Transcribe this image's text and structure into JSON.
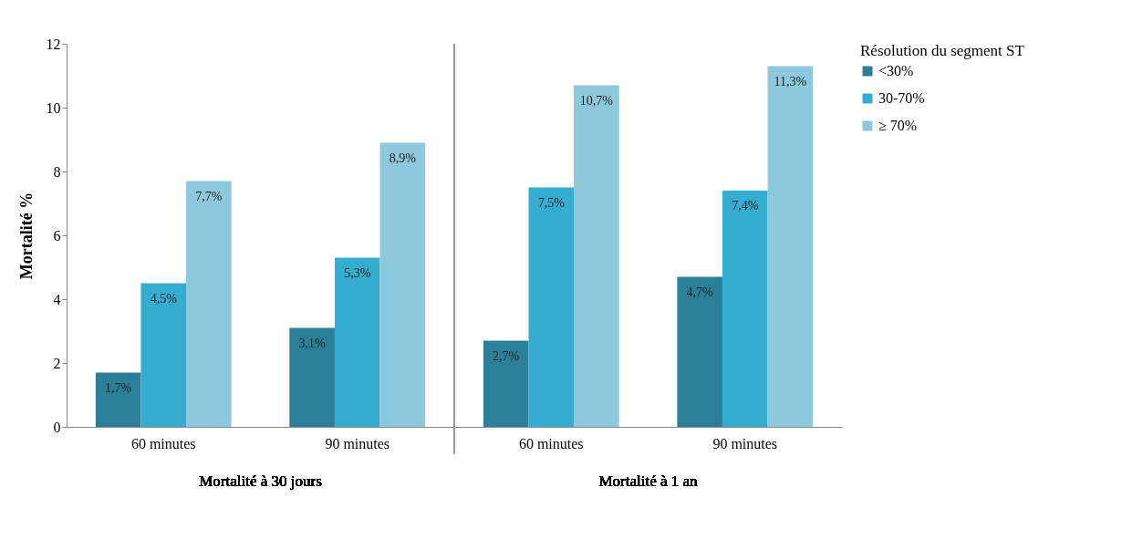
{
  "chart_data": {
    "type": "bar",
    "ylabel": "Mortalité %",
    "legend_title": "Résolution du segment ST",
    "legend": "right",
    "grid": false,
    "categories": [
      "60 minutes",
      "90 minutes",
      "60 minutes",
      "90 minutes"
    ],
    "series": [
      {
        "name": "<30%",
        "color": "#2b7f99",
        "values": [
          1.7,
          3.1,
          2.7,
          4.7
        ],
        "value_labels": [
          "1,7%",
          "3,1%",
          "2,7%",
          "4,7%"
        ]
      },
      {
        "name": "30-70%",
        "color": "#36acd0",
        "values": [
          4.5,
          5.3,
          7.5,
          7.4
        ],
        "value_labels": [
          "4,5%",
          "5,3%",
          "7,5%",
          "7,4%"
        ]
      },
      {
        "name": "≥ 70%",
        "color": "#8ec8dc",
        "values": [
          7.7,
          8.9,
          10.7,
          11.3
        ],
        "value_labels": [
          "7,7%",
          "8,9%",
          "10,7%",
          "11,3%"
        ]
      }
    ],
    "ylim": [
      0,
      12
    ],
    "yticks": [
      0,
      2,
      4,
      6,
      8,
      10,
      12
    ],
    "annotations": [
      "Mortalité à 30 jours",
      "Mortalité à 1 an"
    ]
  }
}
